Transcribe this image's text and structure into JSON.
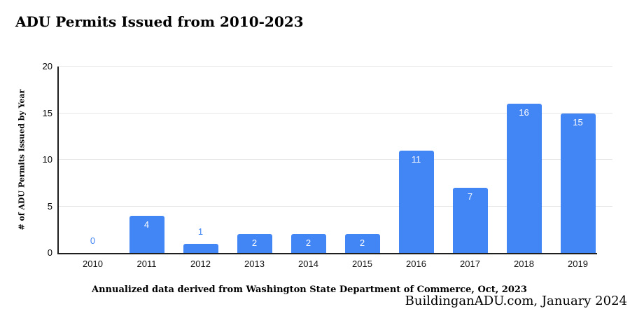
{
  "header": {
    "title": "ADU Permits Issued from 2010-2023"
  },
  "chart_data": {
    "type": "bar",
    "title": "ADU Permits Issued from 2010-2023",
    "categories": [
      "2010",
      "2011",
      "2012",
      "2013",
      "2014",
      "2015",
      "2016",
      "2017",
      "2018",
      "2019"
    ],
    "values": [
      0,
      4,
      1,
      2,
      2,
      2,
      11,
      7,
      16,
      15
    ],
    "xlabel": "",
    "ylabel": "# of ADU Permits Issued by Year",
    "ylim": [
      0,
      20
    ],
    "yticks": [
      0,
      5,
      10,
      15,
      20
    ],
    "grid": true,
    "legend": "none",
    "bar_color": "#4285f4",
    "inside_label_color": "#ffffff",
    "outside_label_color": "#4285f4"
  },
  "footer": {
    "caption": "Annualized data derived from Washington State Department of Commerce, Oct, 2023",
    "credit": "BuildinganADU.com, January 2024"
  }
}
